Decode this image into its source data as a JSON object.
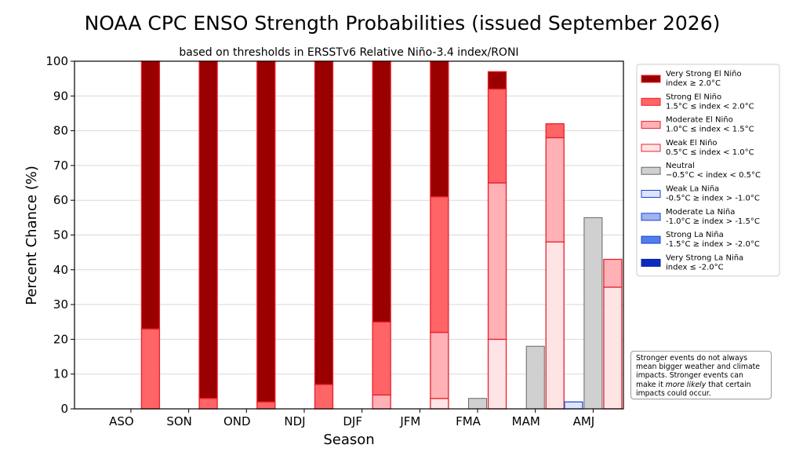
{
  "chart_data": {
    "type": "bar",
    "stacked": true,
    "title": "NOAA CPC ENSO Strength Probabilities (issued September 2026)",
    "subtitle": "based on thresholds in ERSSTv6 Relative Niño-3.4 index/RONI",
    "xlabel": "Season",
    "ylabel": "Percent Chance (%)",
    "ylim": [
      0,
      100
    ],
    "yticks": [
      0,
      10,
      20,
      30,
      40,
      50,
      60,
      70,
      80,
      90,
      100
    ],
    "grid": true,
    "legend_position": "right",
    "categories": [
      "ASO",
      "SON",
      "OND",
      "NDJ",
      "DJF",
      "JFM",
      "FMA",
      "MAM",
      "AMJ"
    ],
    "lanina_series": [
      {
        "name": "Weak La Niña",
        "label": "-0.5°C ≥ index > -1.0°C",
        "color": "#dbe5fb",
        "edge": "#1f3fcf",
        "values": [
          0,
          0,
          0,
          0,
          0,
          0,
          0,
          0,
          2
        ]
      },
      {
        "name": "Moderate La Niña",
        "label": "-1.0°C ≥ index > -1.5°C",
        "color": "#9db5f0",
        "edge": "#1f3fcf",
        "values": [
          0,
          0,
          0,
          0,
          0,
          0,
          0,
          0,
          0
        ]
      },
      {
        "name": "Strong La Niña",
        "label": "-1.5°C ≥ index > -2.0°C",
        "color": "#4f7fe8",
        "edge": "#1f3fcf",
        "values": [
          0,
          0,
          0,
          0,
          0,
          0,
          0,
          0,
          0
        ]
      },
      {
        "name": "Very Strong La Niña",
        "label": "index ≤ -2.0°C",
        "color": "#0b2bc4",
        "edge": "#0b1f8f",
        "values": [
          0,
          0,
          0,
          0,
          0,
          0,
          0,
          0,
          0
        ]
      }
    ],
    "neutral_series": {
      "name": "Neutral",
      "label": "−0.5°C < index < 0.5°C",
      "color": "#d0d0d0",
      "edge": "#666666",
      "values": [
        0,
        0,
        0,
        0,
        0,
        0,
        3,
        18,
        55
      ]
    },
    "elnino_series": [
      {
        "name": "Weak El Niño",
        "label": "0.5°C ≤ index < 1.0°C",
        "color": "#ffe4e6",
        "edge": "#e8202a",
        "values": [
          0,
          0,
          0,
          0,
          0,
          3,
          20,
          48,
          35
        ]
      },
      {
        "name": "Moderate El Niño",
        "label": "1.0°C ≤ index < 1.5°C",
        "color": "#ffb1b6",
        "edge": "#e8202a",
        "values": [
          0,
          0,
          0,
          0,
          4,
          19,
          45,
          30,
          8
        ]
      },
      {
        "name": "Strong El Niño",
        "label": "1.5°C ≤ index < 2.0°C",
        "color": "#ff6466",
        "edge": "#e8202a",
        "values": [
          23,
          3,
          2,
          7,
          21,
          39,
          27,
          4,
          0
        ]
      },
      {
        "name": "Very Strong El Niño",
        "label": "index ≥ 2.0°C",
        "color": "#9a0000",
        "edge": "#e8202a",
        "values": [
          77,
          97,
          98,
          93,
          75,
          39,
          5,
          0,
          0
        ]
      }
    ],
    "note_lines": [
      "Stronger events do not always",
      "mean bigger weather and climate",
      "impacts. Stronger events can",
      "make it ",
      "more likely",
      " that certain",
      "impacts could occur."
    ]
  }
}
